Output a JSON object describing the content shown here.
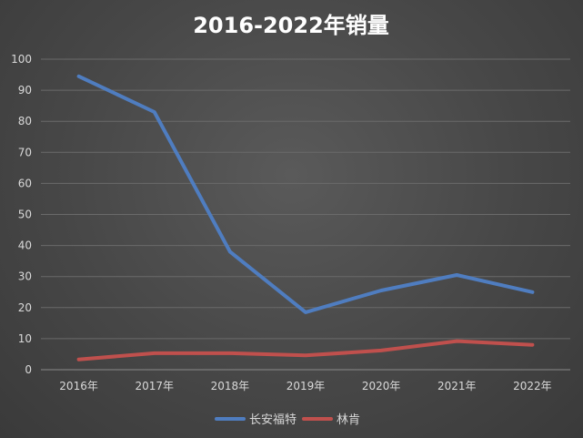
{
  "chart_data": {
    "type": "line",
    "title": "2016-2022年销量",
    "xlabel": "",
    "ylabel": "",
    "categories": [
      "2016年",
      "2017年",
      "2018年",
      "2019年",
      "2020年",
      "2021年",
      "2022年"
    ],
    "series": [
      {
        "name": "长安福特",
        "color": "#4f7dc0",
        "values": [
          94.5,
          83,
          38,
          18.5,
          25.5,
          30.5,
          25
        ]
      },
      {
        "name": "林肯",
        "color": "#c0504d",
        "values": [
          3.3,
          5.3,
          5.3,
          4.6,
          6.2,
          9.2,
          8
        ]
      }
    ],
    "ylim": [
      0,
      100
    ],
    "yticks": [
      0,
      10,
      20,
      30,
      40,
      50,
      60,
      70,
      80,
      90,
      100
    ],
    "grid": true,
    "legend_position": "bottom"
  }
}
